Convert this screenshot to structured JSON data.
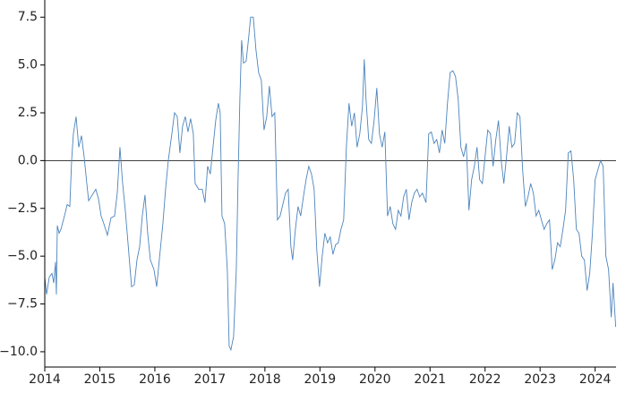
{
  "chart_data": {
    "type": "line",
    "x": [
      2014.0,
      2014.033,
      2014.081,
      2014.13,
      2014.163,
      2014.195,
      2014.211,
      2014.228,
      2014.26,
      2014.293,
      2014.358,
      2014.407,
      2014.455,
      2014.488,
      2014.52,
      2014.569,
      2014.618,
      2014.667,
      2014.715,
      2014.764,
      2014.797,
      2014.862,
      2014.927,
      2014.976,
      2015.024,
      2015.073,
      2015.138,
      2015.203,
      2015.268,
      2015.317,
      2015.366,
      2015.415,
      2015.463,
      2015.512,
      2015.577,
      2015.626,
      2015.675,
      2015.724,
      2015.772,
      2015.821,
      2015.87,
      2015.919,
      2015.984,
      2016.033,
      2016.081,
      2016.146,
      2016.195,
      2016.244,
      2016.309,
      2016.358,
      2016.407,
      2016.455,
      2016.504,
      2016.553,
      2016.602,
      2016.65,
      2016.699,
      2016.732,
      2016.797,
      2016.862,
      2016.911,
      2016.959,
      2017.008,
      2017.057,
      2017.106,
      2017.154,
      2017.187,
      2017.22,
      2017.268,
      2017.317,
      2017.35,
      2017.382,
      2017.431,
      2017.48,
      2017.512,
      2017.545,
      2017.577,
      2017.61,
      2017.659,
      2017.707,
      2017.74,
      2017.789,
      2017.837,
      2017.886,
      2017.935,
      2017.984,
      2018.033,
      2018.081,
      2018.13,
      2018.179,
      2018.228,
      2018.276,
      2018.325,
      2018.374,
      2018.423,
      2018.472,
      2018.504,
      2018.553,
      2018.602,
      2018.65,
      2018.699,
      2018.748,
      2018.797,
      2018.846,
      2018.894,
      2018.943,
      2018.992,
      2019.041,
      2019.089,
      2019.138,
      2019.187,
      2019.236,
      2019.285,
      2019.333,
      2019.382,
      2019.431,
      2019.48,
      2019.528,
      2019.577,
      2019.626,
      2019.675,
      2019.724,
      2019.772,
      2019.805,
      2019.837,
      2019.886,
      2019.935,
      2019.984,
      2020.033,
      2020.081,
      2020.13,
      2020.179,
      2020.228,
      2020.276,
      2020.325,
      2020.374,
      2020.423,
      2020.472,
      2020.52,
      2020.569,
      2020.618,
      2020.667,
      2020.715,
      2020.764,
      2020.813,
      2020.862,
      2020.927,
      2020.976,
      2021.024,
      2021.073,
      2021.122,
      2021.171,
      2021.22,
      2021.268,
      2021.317,
      2021.366,
      2021.415,
      2021.463,
      2021.512,
      2021.561,
      2021.61,
      2021.659,
      2021.707,
      2021.756,
      2021.805,
      2021.854,
      2021.902,
      2021.951,
      2022.0,
      2022.049,
      2022.098,
      2022.146,
      2022.195,
      2022.244,
      2022.293,
      2022.341,
      2022.39,
      2022.439,
      2022.488,
      2022.537,
      2022.585,
      2022.634,
      2022.683,
      2022.732,
      2022.78,
      2022.829,
      2022.878,
      2022.927,
      2022.976,
      2023.024,
      2023.073,
      2023.122,
      2023.171,
      2023.22,
      2023.268,
      2023.317,
      2023.366,
      2023.415,
      2023.463,
      2023.512,
      2023.561,
      2023.61,
      2023.659,
      2023.707,
      2023.756,
      2023.805,
      2023.854,
      2023.902,
      2023.951,
      2024.0,
      2024.049,
      2024.098,
      2024.146,
      2024.195,
      2024.244,
      2024.293,
      2024.325,
      2024.374
    ],
    "series": [
      {
        "color": "#4c84bd",
        "values": [
          -6.1,
          -7.0,
          -6.1,
          -5.9,
          -6.4,
          -5.3,
          -7.0,
          -3.4,
          -3.8,
          -3.6,
          -2.9,
          -2.3,
          -2.4,
          0,
          1.4,
          2.3,
          0.7,
          1.3,
          0.2,
          -1.2,
          -2.1,
          -1.8,
          -1.5,
          -2.0,
          -2.9,
          -3.3,
          -3.9,
          -3.0,
          -2.9,
          -1.7,
          0.7,
          -1.2,
          -2.6,
          -4.3,
          -6.6,
          -6.5,
          -5.2,
          -4.5,
          -2.9,
          -1.8,
          -3.8,
          -5.2,
          -5.7,
          -6.6,
          -5.2,
          -3.3,
          -1.5,
          0,
          1.4,
          2.5,
          2.3,
          0.4,
          1.8,
          2.3,
          1.5,
          2.2,
          1.4,
          -1.2,
          -1.5,
          -1.5,
          -2.2,
          -0.3,
          -0.7,
          0.7,
          2.1,
          3.0,
          2.5,
          -2.9,
          -3.3,
          -5.7,
          -9.7,
          -9.9,
          -9.2,
          -5.7,
          -1.0,
          3.2,
          6.3,
          5.1,
          5.2,
          6.5,
          7.5,
          7.5,
          5.8,
          4.6,
          4.2,
          1.6,
          2.3,
          3.9,
          2.3,
          2.5,
          -3.1,
          -2.9,
          -2.3,
          -1.7,
          -1.5,
          -4.5,
          -5.2,
          -3.6,
          -2.4,
          -2.9,
          -1.9,
          -1.0,
          -0.3,
          -0.7,
          -1.5,
          -4.7,
          -6.6,
          -5.0,
          -3.8,
          -4.3,
          -4.0,
          -4.9,
          -4.4,
          -4.3,
          -3.6,
          -3.1,
          0.7,
          3.0,
          1.8,
          2.5,
          0.7,
          1.4,
          2.8,
          5.3,
          3.2,
          1.1,
          0.9,
          2.1,
          3.8,
          1.4,
          0.7,
          1.5,
          -2.9,
          -2.4,
          -3.3,
          -3.6,
          -2.6,
          -2.9,
          -1.9,
          -1.5,
          -3.1,
          -2.2,
          -1.7,
          -1.5,
          -1.9,
          -1.7,
          -2.2,
          1.4,
          1.5,
          0.9,
          1.1,
          0.4,
          1.6,
          0.9,
          3.0,
          4.6,
          4.7,
          4.4,
          3.2,
          0.7,
          0.2,
          0.9,
          -2.6,
          -1.0,
          -0.3,
          0.7,
          -1.0,
          -1.2,
          0.2,
          1.6,
          1.4,
          -0.3,
          1.1,
          2.1,
          0,
          -1.2,
          0.2,
          1.8,
          0.7,
          0.9,
          2.5,
          2.3,
          -0.5,
          -2.4,
          -1.9,
          -1.2,
          -1.7,
          -2.9,
          -2.6,
          -3.1,
          -3.6,
          -3.3,
          -3.1,
          -5.7,
          -5.2,
          -4.3,
          -4.5,
          -3.6,
          -2.6,
          0.4,
          0.5,
          -1.0,
          -3.6,
          -3.8,
          -5.0,
          -5.2,
          -6.8,
          -5.9,
          -3.8,
          -1.0,
          -0.5,
          0,
          -0.3,
          -5.0,
          -5.7,
          -8.2,
          -6.4,
          -8.7
        ]
      }
    ],
    "xlim": [
      2014,
      2024.38
    ],
    "xticks": [
      2014,
      2015,
      2016,
      2017,
      2018,
      2019,
      2020,
      2021,
      2022,
      2023,
      2024
    ],
    "ylim": [
      -10.8,
      8.4
    ],
    "yticks": [
      {
        "value": 7.5,
        "label": "7.5"
      },
      {
        "value": 5,
        "label": "5.0"
      },
      {
        "value": 2.5,
        "label": "2.5"
      },
      {
        "value": 0,
        "label": "0.0"
      },
      {
        "value": -2.5,
        "label": "−2.5"
      },
      {
        "value": -5,
        "label": "−5.0"
      },
      {
        "value": -7.5,
        "label": "−7.5"
      },
      {
        "value": -10,
        "label": "−10.0"
      }
    ],
    "hline": 0
  }
}
